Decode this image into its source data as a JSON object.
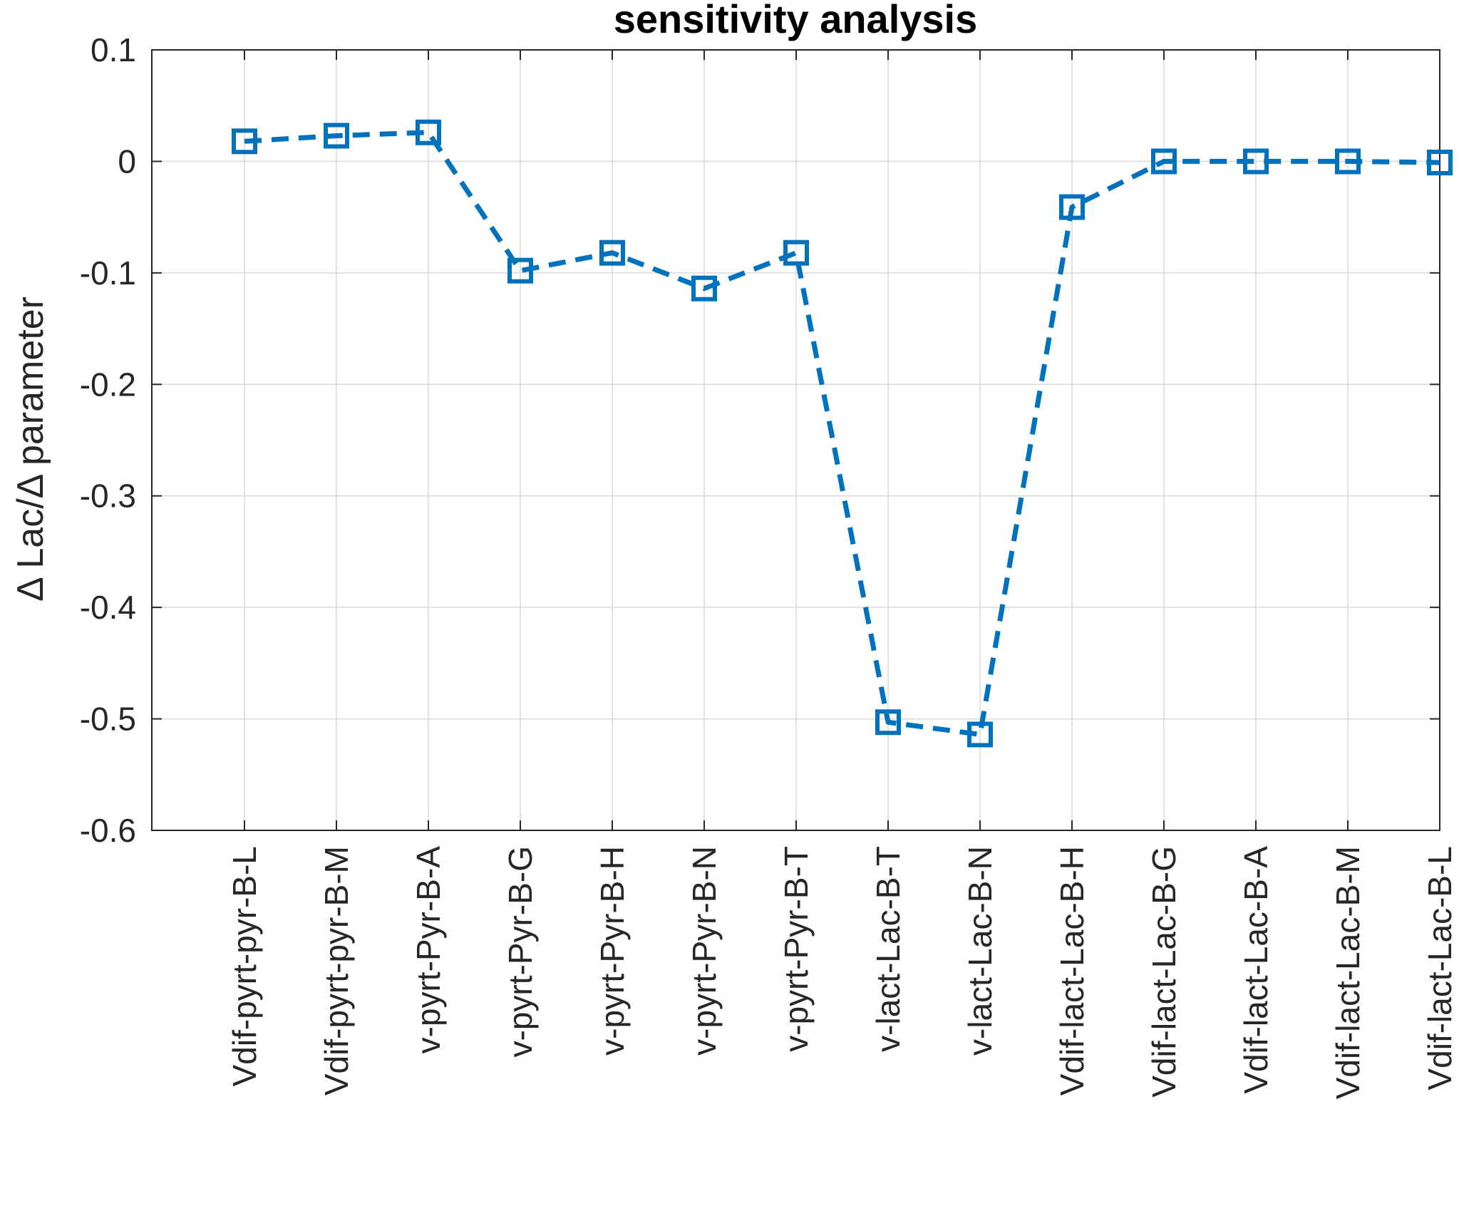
{
  "chart_data": {
    "type": "line",
    "title": "sensitivity analysis",
    "xlabel": "",
    "ylabel": "Δ Lac/Δ parameter",
    "ylim": [
      -0.6,
      0.1
    ],
    "yticks": [
      0.1,
      0,
      -0.1,
      -0.2,
      -0.3,
      -0.4,
      -0.5,
      -0.6
    ],
    "ytick_labels": [
      "0.1",
      "0",
      "-0.1",
      "-0.2",
      "-0.3",
      "-0.4",
      "-0.5",
      "-0.6"
    ],
    "grid": true,
    "categories": [
      "Vdif-pyrt-pyr-B-L",
      "Vdif-pyrt-pyr-B-M",
      "v-pyrt-Pyr-B-A",
      "v-pyrt-Pyr-B-G",
      "v-pyrt-Pyr-B-H",
      "v-pyrt-Pyr-B-N",
      "v-pyrt-Pyr-B-T",
      "v-lact-Lac-B-T",
      "v-lact-Lac-B-N",
      "Vdif-lact-Lac-B-H",
      "Vdif-lact-Lac-B-G",
      "Vdif-lact-Lac-B-A",
      "Vdif-lact-Lac-B-M",
      "Vdif-lact-Lac-B-L"
    ],
    "series": [
      {
        "values": [
          0.018,
          0.023,
          0.026,
          -0.098,
          -0.082,
          -0.114,
          -0.082,
          -0.503,
          -0.514,
          -0.041,
          0.0,
          0.0,
          0.0,
          -0.001
        ],
        "color": "#0072BD",
        "line_style": "dashed",
        "marker": "square"
      }
    ]
  }
}
